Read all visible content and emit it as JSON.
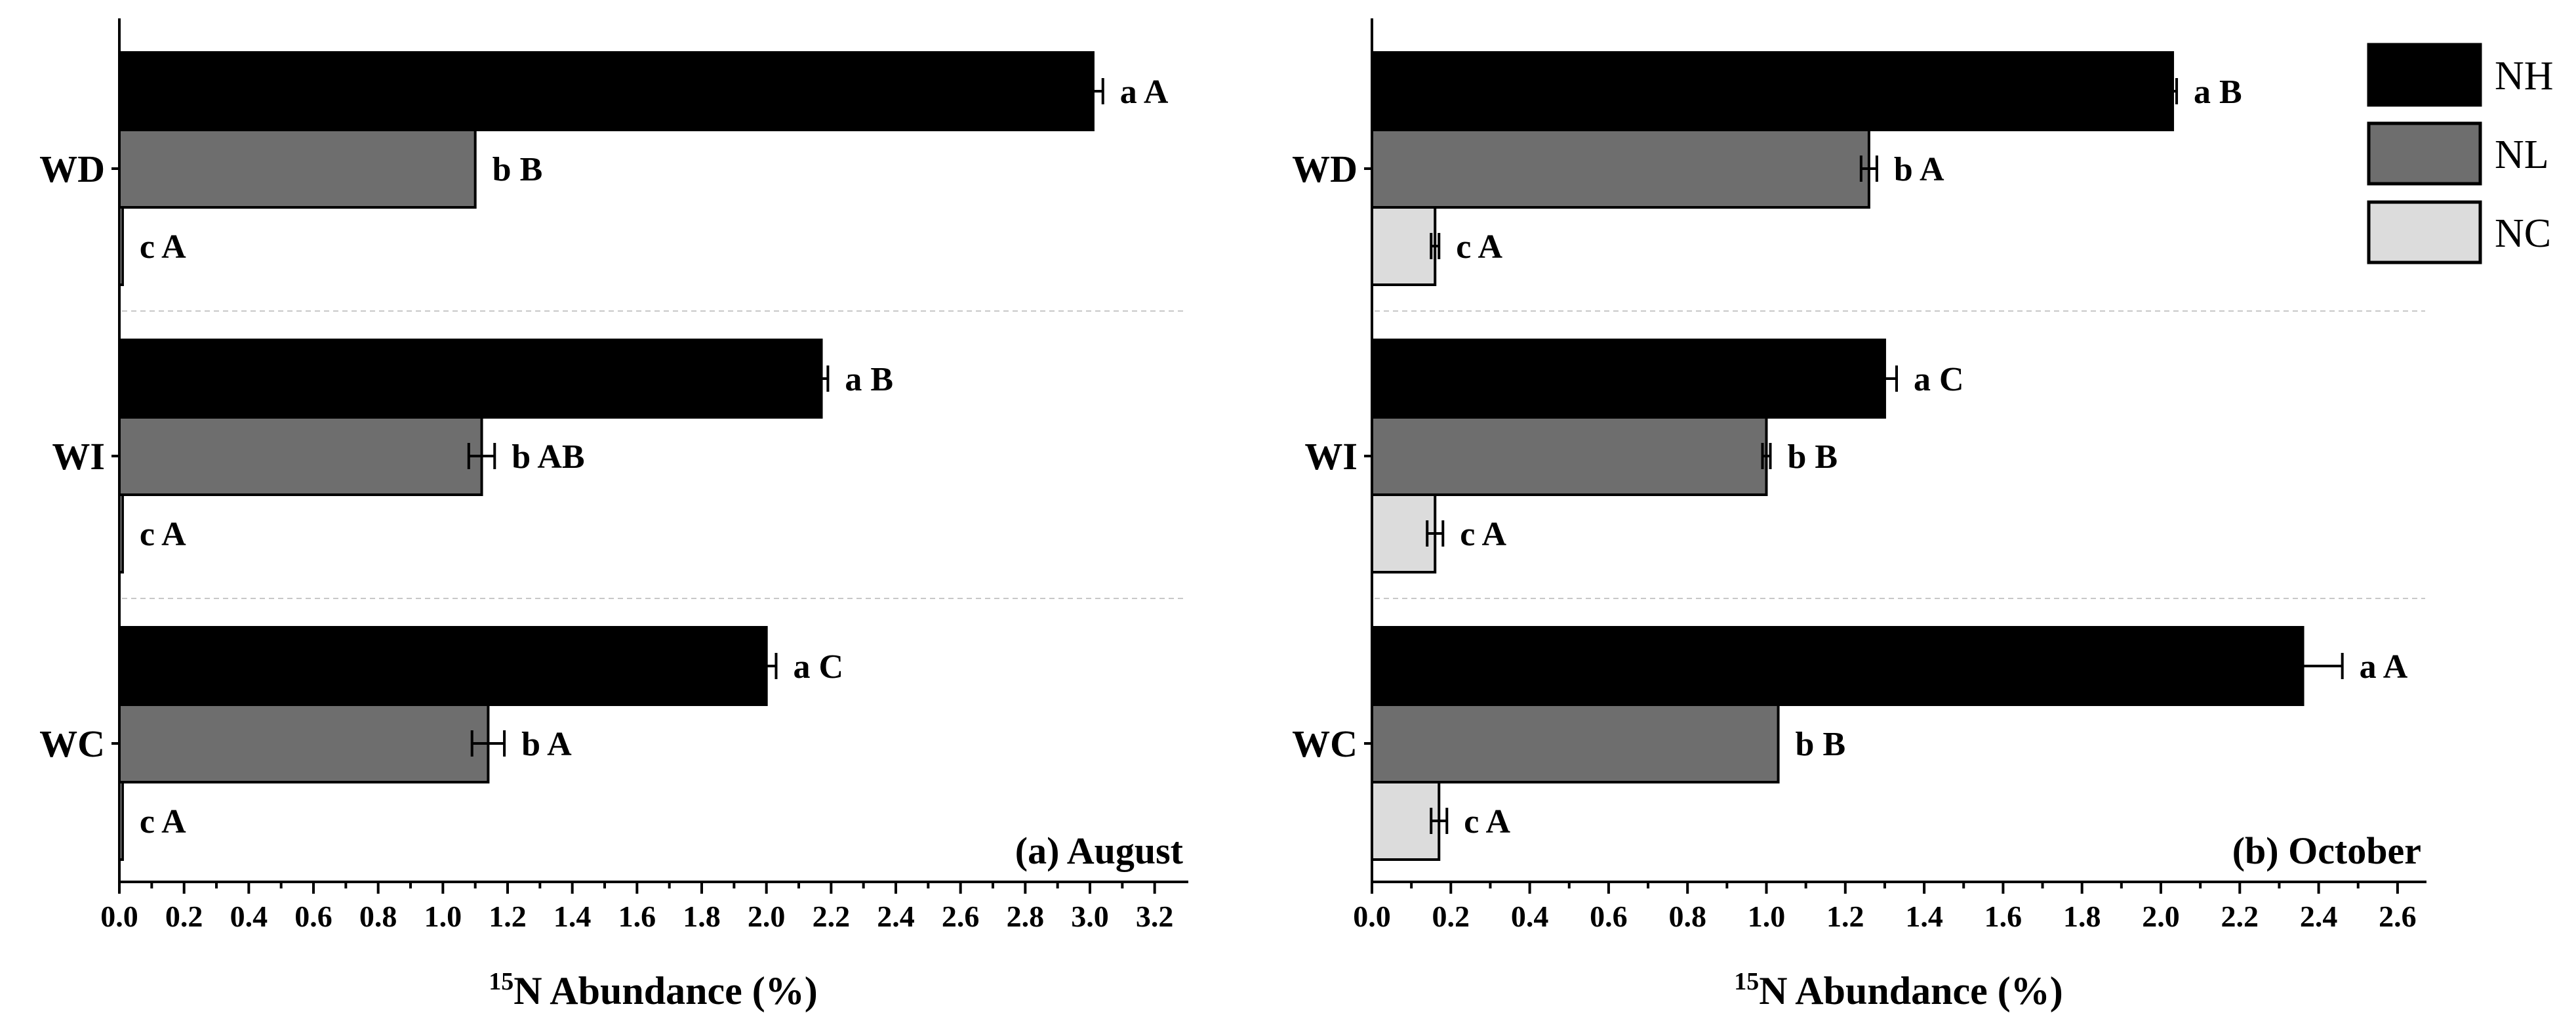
{
  "chart_data": [
    {
      "type": "bar",
      "orientation": "horizontal",
      "panel_title": "(a) August",
      "categories": [
        "WD",
        "WI",
        "WC"
      ],
      "series": [
        {
          "name": "NH",
          "color": "#000000",
          "values": [
            3.01,
            2.17,
            2.0
          ],
          "errors": [
            0.03,
            0.02,
            0.03
          ],
          "labels": [
            "a A",
            "a B",
            "a C"
          ]
        },
        {
          "name": "NL",
          "color": "#6e6e6e",
          "values": [
            1.1,
            1.12,
            1.14
          ],
          "errors": [
            0.0,
            0.04,
            0.05
          ],
          "labels": [
            "b B",
            "b AB",
            "b A"
          ]
        },
        {
          "name": "NC",
          "color": "#dcdcdc",
          "values": [
            0.01,
            0.01,
            0.01
          ],
          "errors": [
            0.0,
            0.0,
            0.0
          ],
          "labels": [
            "c A",
            "c A",
            "c A"
          ]
        }
      ],
      "xlim": [
        0,
        3.3
      ],
      "xticks": [
        0.0,
        0.2,
        0.4,
        0.6,
        0.8,
        1.0,
        1.2,
        1.4,
        1.6,
        1.8,
        2.0,
        2.2,
        2.4,
        2.6,
        2.8,
        3.0,
        3.2
      ],
      "xtick_labels": [
        "0.0",
        "0.2",
        "0.4",
        "0.6",
        "0.8",
        "1.0",
        "1.2",
        "1.4",
        "1.6",
        "1.8",
        "2.0",
        "2.2",
        "2.4",
        "2.6",
        "2.8",
        "3.0",
        "3.2"
      ],
      "xlabel_sup": "15",
      "xlabel": "N Abundance (%)"
    },
    {
      "type": "bar",
      "orientation": "horizontal",
      "panel_title": "(b) October",
      "categories": [
        "WD",
        "WI",
        "WC"
      ],
      "series": [
        {
          "name": "NH",
          "color": "#000000",
          "values": [
            2.03,
            1.3,
            2.36
          ],
          "errors": [
            0.01,
            0.03,
            0.1
          ],
          "labels": [
            "a B",
            "a C",
            "a A"
          ]
        },
        {
          "name": "NL",
          "color": "#6e6e6e",
          "values": [
            1.26,
            1.0,
            1.03
          ],
          "errors": [
            0.02,
            0.01,
            0.0
          ],
          "labels": [
            "b A",
            "b B",
            "b B"
          ]
        },
        {
          "name": "NC",
          "color": "#dcdcdc",
          "values": [
            0.16,
            0.16,
            0.17
          ],
          "errors": [
            0.01,
            0.02,
            0.02
          ],
          "labels": [
            "c A",
            "c A",
            "c A"
          ]
        }
      ],
      "xlim": [
        0,
        2.67
      ],
      "xticks": [
        0.0,
        0.2,
        0.4,
        0.6,
        0.8,
        1.0,
        1.2,
        1.4,
        1.6,
        1.8,
        2.0,
        2.2,
        2.4,
        2.6
      ],
      "xtick_labels": [
        "0.0",
        "0.2",
        "0.4",
        "0.6",
        "0.8",
        "1.0",
        "1.2",
        "1.4",
        "1.6",
        "1.8",
        "2.0",
        "2.2",
        "2.4",
        "2.6"
      ],
      "xlabel_sup": "15",
      "xlabel": "N Abundance (%)"
    }
  ],
  "legend": {
    "placement": "top-right",
    "entries": [
      {
        "name": "NH",
        "color": "#000000"
      },
      {
        "name": "NL",
        "color": "#6e6e6e"
      },
      {
        "name": "NC",
        "color": "#dcdcdc"
      }
    ]
  }
}
